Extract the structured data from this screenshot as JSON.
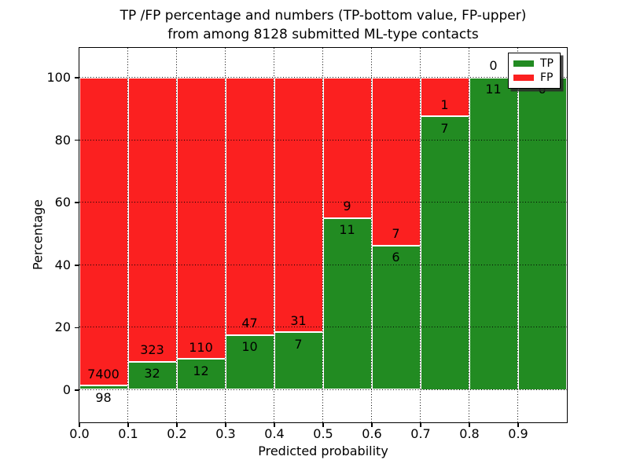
{
  "title": {
    "line1": "TP /FP percentage and numbers (TP-bottom value, FP-upper)",
    "line2": "from among 8128 submitted ML-type contacts"
  },
  "axes": {
    "xlabel": "Predicted probability",
    "ylabel": "Percentage",
    "yticks": [
      0,
      20,
      40,
      60,
      80,
      100
    ],
    "xticks": [
      "0.0",
      "0.1",
      "0.2",
      "0.3",
      "0.4",
      "0.5",
      "0.6",
      "0.7",
      "0.8",
      "0.9"
    ]
  },
  "legend": {
    "tp": "TP",
    "fp": "FP"
  },
  "colors": {
    "tp": "#228B22",
    "fp": "#FB2020",
    "grid": "#000000",
    "bar_edge": "#FFFFFF"
  },
  "chart_data": {
    "type": "bar",
    "stacking": "percent",
    "title": "TP /FP percentage and numbers (TP-bottom value, FP-upper) from among 8128 submitted ML-type contacts",
    "xlabel": "Predicted probability",
    "ylabel": "Percentage",
    "total_contacts": 8128,
    "xlim": [
      0.0,
      1.0
    ],
    "ylim": [
      -10,
      110
    ],
    "grid": true,
    "legend_position": "upper right",
    "categories": [
      "0.0-0.1",
      "0.1-0.2",
      "0.2-0.3",
      "0.3-0.4",
      "0.4-0.5",
      "0.5-0.6",
      "0.6-0.7",
      "0.7-0.8",
      "0.8-0.9",
      "0.9-1.0"
    ],
    "series": [
      {
        "name": "TP",
        "values": [
          98,
          32,
          12,
          10,
          7,
          11,
          6,
          7,
          11,
          6
        ]
      },
      {
        "name": "FP",
        "values": [
          7400,
          323,
          110,
          47,
          31,
          9,
          7,
          1,
          0,
          0
        ]
      }
    ]
  }
}
